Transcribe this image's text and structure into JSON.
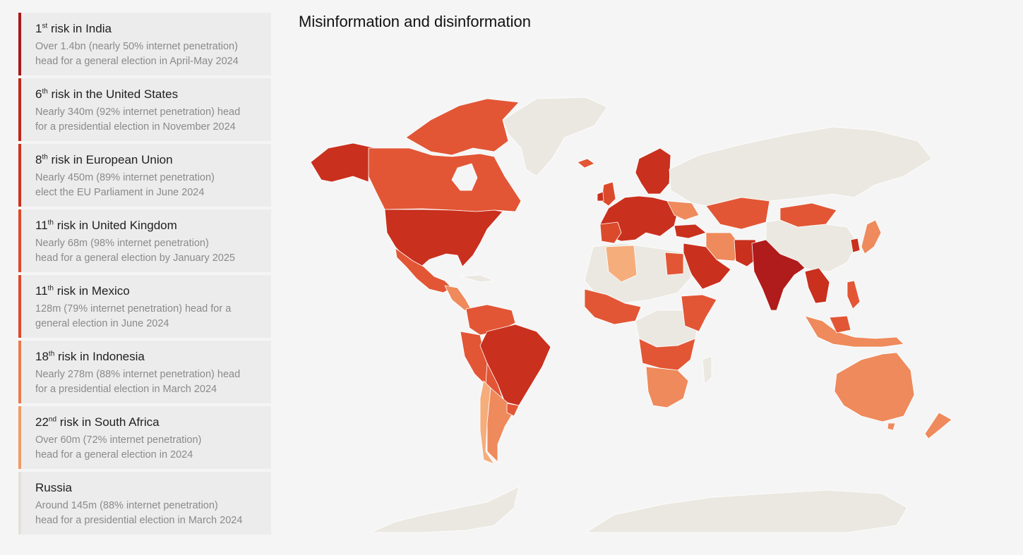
{
  "map_title": "Misinformation and disinformation",
  "colors": {
    "rank_1": "#b01b1b",
    "rank_high": "#c9301e",
    "rank_mid": "#e25635",
    "rank_low": "#ee8a5c",
    "rank_lowest": "#f5ad7c",
    "no_election": "#ebe8e1",
    "background": "#f5f5f5"
  },
  "cards": [
    {
      "rank_num": "1",
      "rank_suffix": "st",
      "title_rest": " risk in India",
      "desc_line1": "Over 1.4bn (nearly 50% internet penetration)",
      "desc_line2": "head for a general election in April-May 2024",
      "accent": "#a81818"
    },
    {
      "rank_num": "6",
      "rank_suffix": "th",
      "title_rest": " risk in the United States",
      "desc_line1": "Nearly 340m (92% internet penetration) head",
      "desc_line2": "for a presidential election in November 2024",
      "accent": "#c2261b"
    },
    {
      "rank_num": "8",
      "rank_suffix": "th",
      "title_rest": " risk in European Union",
      "desc_line1": "Nearly 450m (89% internet penetration)",
      "desc_line2": "elect the EU Parliament in June 2024",
      "accent": "#cd3320"
    },
    {
      "rank_num": "11",
      "rank_suffix": "th",
      "title_rest": " risk in United Kingdom",
      "desc_line1": "Nearly 68m (98% internet penetration)",
      "desc_line2": "head for a general election by January 2025",
      "accent": "#dc4a2c"
    },
    {
      "rank_num": "11",
      "rank_suffix": "th",
      "title_rest": " risk in Mexico",
      "desc_line1": "128m (79% internet penetration) head for a",
      "desc_line2": "general election in June 2024",
      "accent": "#dc4a2c"
    },
    {
      "rank_num": "18",
      "rank_suffix": "th",
      "title_rest": " risk in Indonesia",
      "desc_line1": "Nearly 278m (88% internet penetration) head",
      "desc_line2": "for a presidential election in March 2024",
      "accent": "#ea7a4e"
    },
    {
      "rank_num": "22",
      "rank_suffix": "nd",
      "title_rest": " risk in South Africa",
      "desc_line1": "Over 60m (72% internet penetration)",
      "desc_line2": "head for a general election in 2024",
      "accent": "#f29a66"
    },
    {
      "rank_num": "",
      "rank_suffix": "",
      "title_rest": "Russia",
      "desc_line1": "Around 145m (88% internet penetration)",
      "desc_line2": "head for a presidential election in March 2024",
      "accent": "#e4e1da"
    }
  ]
}
